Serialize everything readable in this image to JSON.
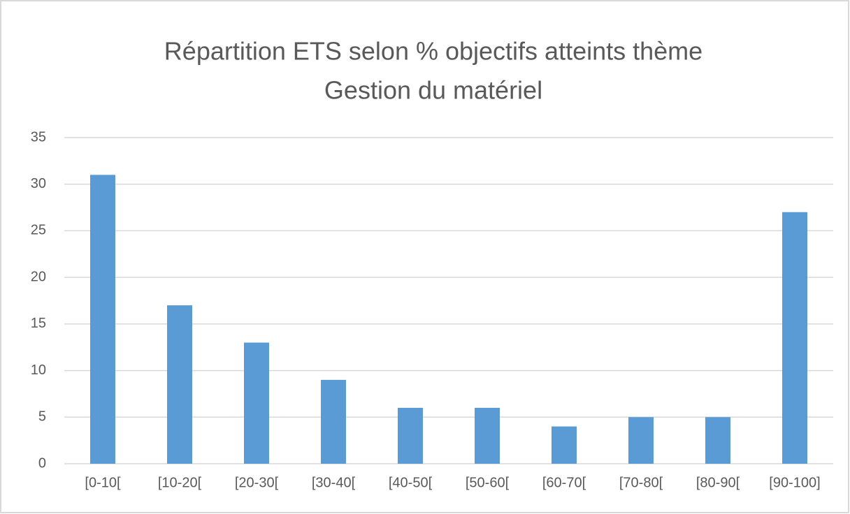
{
  "chart_data": {
    "type": "bar",
    "title": [
      "Répartition ETS selon % objectifs atteints thème",
      "Gestion du matériel"
    ],
    "categories": [
      "[0-10[",
      "[10-20[",
      "[20-30[",
      "[30-40[",
      "[40-50[",
      "[50-60[",
      "[60-70[",
      "[70-80[",
      "[80-90[",
      "[90-100]"
    ],
    "values": [
      31,
      17,
      13,
      9,
      6,
      6,
      4,
      5,
      5,
      27
    ],
    "color": "#5b9bd5",
    "ylim": [
      0,
      35
    ],
    "yticks": [
      0,
      5,
      10,
      15,
      20,
      25,
      30,
      35
    ],
    "grid": true
  }
}
